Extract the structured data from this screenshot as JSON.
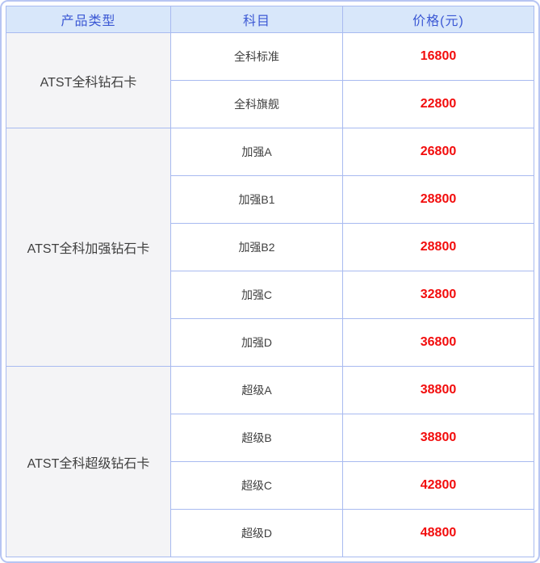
{
  "table": {
    "headers": [
      "产品类型",
      "科目",
      "价格(元)"
    ],
    "groups": [
      {
        "product": "ATST全科钻石卡",
        "rows": [
          {
            "subject": "全科标准",
            "price": "16800"
          },
          {
            "subject": "全科旗舰",
            "price": "22800"
          }
        ]
      },
      {
        "product": "ATST全科加强钻石卡",
        "rows": [
          {
            "subject": "加强A",
            "price": "26800"
          },
          {
            "subject": "加强B1",
            "price": "28800"
          },
          {
            "subject": "加强B2",
            "price": "28800"
          },
          {
            "subject": "加强C",
            "price": "32800"
          },
          {
            "subject": "加强D",
            "price": "36800"
          }
        ]
      },
      {
        "product": "ATST全科超级钻石卡",
        "rows": [
          {
            "subject": "超级A",
            "price": "38800"
          },
          {
            "subject": "超级B",
            "price": "38800"
          },
          {
            "subject": "超级C",
            "price": "42800"
          },
          {
            "subject": "超级D",
            "price": "48800"
          }
        ]
      }
    ]
  },
  "colors": {
    "header_bg": "#d8e7fa",
    "header_text": "#3b58d4",
    "border": "#a8baf0",
    "outer_border": "#b7c5f3",
    "group_cell_bg": "#f4f4f6",
    "body_text": "#3f3f3f",
    "price_text": "#f20d0d"
  },
  "chart_data": {
    "type": "table",
    "title": "",
    "columns": [
      "产品类型",
      "科目",
      "价格(元)"
    ],
    "rows": [
      [
        "ATST全科钻石卡",
        "全科标准",
        16800
      ],
      [
        "ATST全科钻石卡",
        "全科旗舰",
        22800
      ],
      [
        "ATST全科加强钻石卡",
        "加强A",
        26800
      ],
      [
        "ATST全科加强钻石卡",
        "加强B1",
        28800
      ],
      [
        "ATST全科加强钻石卡",
        "加强B2",
        28800
      ],
      [
        "ATST全科加强钻石卡",
        "加强C",
        32800
      ],
      [
        "ATST全科加强钻石卡",
        "加强D",
        36800
      ],
      [
        "ATST全科超级钻石卡",
        "超级A",
        38800
      ],
      [
        "ATST全科超级钻石卡",
        "超级B",
        38800
      ],
      [
        "ATST全科超级钻石卡",
        "超级C",
        42800
      ],
      [
        "ATST全科超级钻石卡",
        "超级D",
        48800
      ]
    ]
  }
}
